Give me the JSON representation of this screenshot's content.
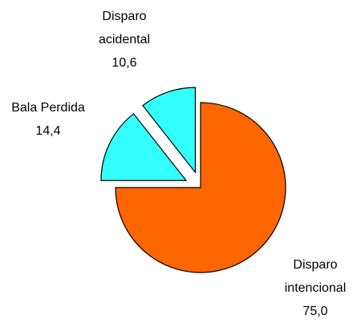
{
  "chart_data": {
    "type": "pie",
    "categories": [
      "Disparo intencional",
      "Bala Perdida",
      "Disparo acidental"
    ],
    "values": [
      75.0,
      14.4,
      10.6
    ],
    "value_labels": [
      "75,0",
      "14,4",
      "10,6"
    ],
    "colors": [
      "#ff6600",
      "#33ffff",
      "#33ffff"
    ],
    "exploded": [
      false,
      true,
      true
    ]
  }
}
